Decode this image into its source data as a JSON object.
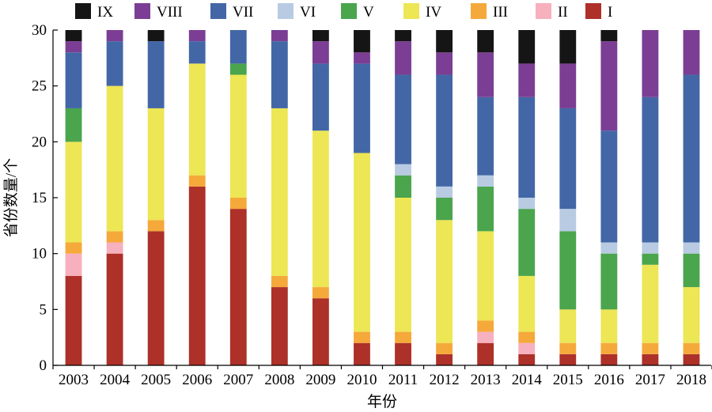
{
  "chart_data": {
    "type": "bar",
    "stacked": true,
    "categories": [
      "2003",
      "2004",
      "2005",
      "2006",
      "2007",
      "2008",
      "2009",
      "2010",
      "2011",
      "2012",
      "2013",
      "2014",
      "2015",
      "2016",
      "2017",
      "2018"
    ],
    "xlabel": "年份",
    "ylabel": "省份数量/个",
    "ylim": [
      0,
      30
    ],
    "yticks": [
      0,
      5,
      10,
      15,
      20,
      25,
      30
    ],
    "grid": false,
    "legend_position": "top",
    "series": [
      {
        "name": "I",
        "color": "#ad3029",
        "values": [
          8,
          10,
          12,
          16,
          14,
          7,
          6,
          2,
          2,
          1,
          2,
          1,
          1,
          1,
          1,
          1
        ]
      },
      {
        "name": "II",
        "color": "#f6b0be",
        "values": [
          2,
          1,
          0,
          0,
          0,
          0,
          0,
          0,
          0,
          0,
          1,
          1,
          0,
          0,
          0,
          0
        ]
      },
      {
        "name": "III",
        "color": "#f5a93a",
        "values": [
          1,
          1,
          1,
          1,
          1,
          1,
          1,
          1,
          1,
          1,
          1,
          1,
          1,
          1,
          1,
          1
        ]
      },
      {
        "name": "IV",
        "color": "#ede655",
        "values": [
          9,
          13,
          10,
          10,
          11,
          15,
          14,
          16,
          12,
          11,
          8,
          5,
          3,
          3,
          7,
          5
        ]
      },
      {
        "name": "V",
        "color": "#4aa54d",
        "values": [
          3,
          0,
          0,
          0,
          1,
          0,
          0,
          0,
          2,
          2,
          4,
          6,
          7,
          5,
          1,
          3
        ]
      },
      {
        "name": "VI",
        "color": "#b8cbe2",
        "values": [
          0,
          0,
          0,
          0,
          0,
          0,
          0,
          0,
          1,
          1,
          1,
          1,
          2,
          1,
          1,
          1
        ]
      },
      {
        "name": "VII",
        "color": "#4367a6",
        "values": [
          5,
          4,
          6,
          2,
          3,
          6,
          6,
          8,
          8,
          10,
          7,
          9,
          9,
          10,
          13,
          15
        ]
      },
      {
        "name": "VIII",
        "color": "#7b3e94",
        "values": [
          1,
          1,
          0,
          1,
          0,
          1,
          2,
          1,
          3,
          2,
          4,
          3,
          4,
          8,
          6,
          4
        ]
      },
      {
        "name": "IX",
        "color": "#151515",
        "values": [
          1,
          0,
          1,
          0,
          0,
          0,
          1,
          2,
          1,
          2,
          2,
          3,
          3,
          1,
          0,
          0
        ]
      }
    ]
  }
}
